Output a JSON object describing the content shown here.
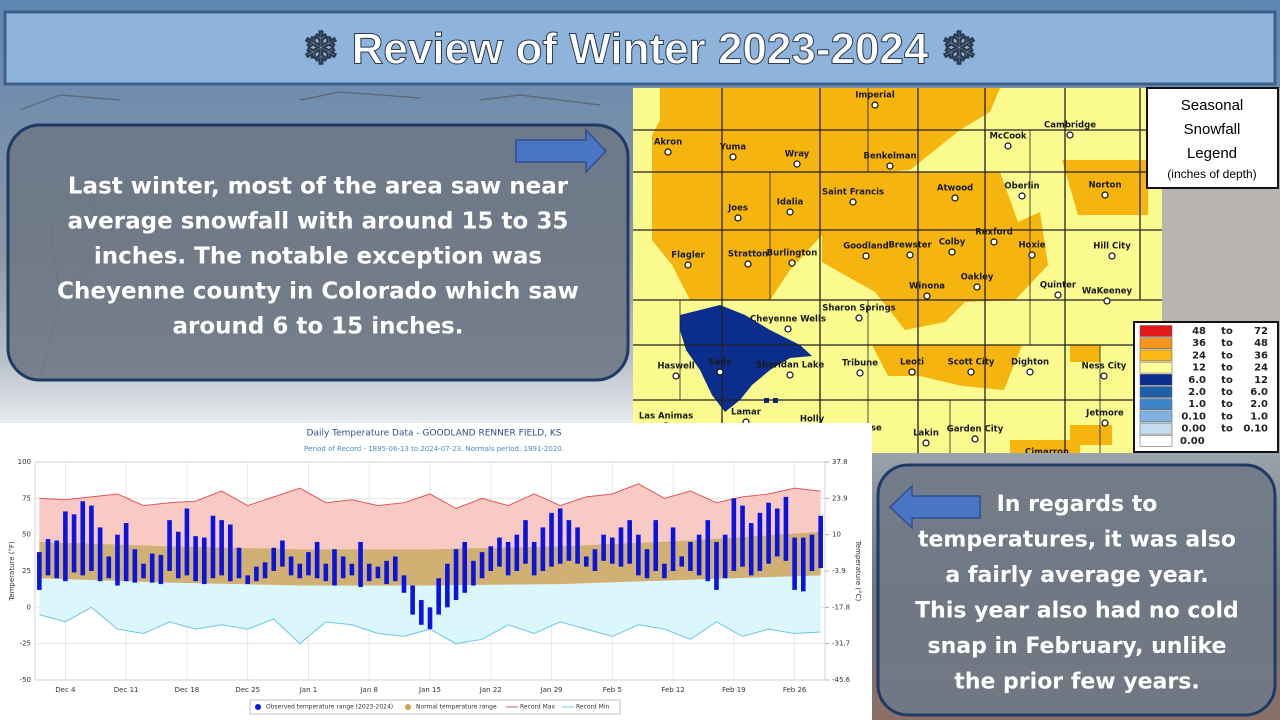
{
  "title": "❄ Review of Winter 2023-2024 ❄",
  "left_text": [
    "Last winter, most of the area saw near",
    "average snowfall with around 15 to 35",
    "inches. The notable exception was",
    "Cheyenne county in Colorado which saw",
    "around 6 to 15 inches."
  ],
  "right_text": [
    "In regards to",
    "temperatures, it was also",
    "a fairly average year.",
    "This year also had no cold",
    "snap in February, unlike",
    "the prior few years."
  ],
  "map": {
    "legend_title": [
      "Seasonal",
      "Snowfall",
      "Legend"
    ],
    "legend_units": "(inches of depth)",
    "legend_connector": "to",
    "legend_rows": [
      {
        "color": "#e31a1c",
        "from": "48",
        "to": "72"
      },
      {
        "color": "#f7941d",
        "from": "36",
        "to": "48"
      },
      {
        "color": "#fbb917",
        "from": "24",
        "to": "36"
      },
      {
        "color": "#ffff99",
        "from": "12",
        "to": "24"
      },
      {
        "color": "#0b2d8c",
        "from": "6.0",
        "to": "12"
      },
      {
        "color": "#1f5ea8",
        "from": "2.0",
        "to": "6.0"
      },
      {
        "color": "#3d85c6",
        "from": "1.0",
        "to": "2.0"
      },
      {
        "color": "#7fb2e0",
        "from": "0.10",
        "to": "1.0"
      },
      {
        "color": "#c6dcf0",
        "from": "0.00",
        "to": "0.10"
      },
      {
        "color": "#ffffff",
        "from": "0.00"
      }
    ],
    "towns": [
      "Imperial",
      "Akron",
      "Yuma",
      "Wray",
      "McCook",
      "Cambridge",
      "Benkelman",
      "Saint Francis",
      "Atwood",
      "Oberlin",
      "Norton",
      "Joes",
      "Idalia",
      "Flagler",
      "Stratton",
      "Burlington",
      "Goodland",
      "Brewster",
      "Colby",
      "Rexford",
      "Hoxie",
      "Hill City",
      "Oakley",
      "Quinter",
      "WaKeeney",
      "Winona",
      "Sharon Springs",
      "Cheyenne Wells",
      "Haswell",
      "Eads",
      "Sheridan Lake",
      "Tribune",
      "Leoti",
      "Scott City",
      "Dighton",
      "Ness City",
      "Las Animas",
      "Lamar",
      "Holly",
      "Syracuse",
      "Lakin",
      "Garden City",
      "Jetmore",
      "Cimarron"
    ]
  },
  "chart_data": {
    "type": "temperature_range",
    "title": "Daily Temperature Data - GOODLAND RENNER FIELD, KS",
    "subtitle": "Period of Record - 1895-06-13 to 2024-07-23. Normals period: 1991-2020.",
    "y_label": "Temperature (°F)",
    "y2_label": "Temperature (°C)",
    "xlim": [
      -0.5,
      90.5
    ],
    "xticks": [
      {
        "value": 3,
        "label": "Dec 4"
      },
      {
        "value": 10,
        "label": "Dec 11"
      },
      {
        "value": 17,
        "label": "Dec 18"
      },
      {
        "value": 24,
        "label": "Dec 25"
      },
      {
        "value": 31,
        "label": "Jan 1"
      },
      {
        "value": 38,
        "label": "Jan 8"
      },
      {
        "value": 45,
        "label": "Jan 15"
      },
      {
        "value": 52,
        "label": "Jan 22"
      },
      {
        "value": 59,
        "label": "Jan 29"
      },
      {
        "value": 66,
        "label": "Feb 5"
      },
      {
        "value": 73,
        "label": "Feb 12"
      },
      {
        "value": 80,
        "label": "Feb 19"
      },
      {
        "value": 87,
        "label": "Feb 26"
      }
    ],
    "ylim": [
      -50,
      100
    ],
    "yticks": [
      -50,
      -25,
      0,
      25,
      50,
      75,
      100
    ],
    "y2lim": [
      -45.6,
      37.8
    ],
    "y2ticks": [
      -45.6,
      -31.7,
      -17.8,
      -3.9,
      10,
      23.9,
      37.8
    ],
    "grid": true,
    "series": [
      {
        "name": "Observed temperature range (2023-2024)",
        "color": "#0a14e0",
        "x": [
          0,
          1,
          2,
          3,
          4,
          5,
          6,
          7,
          8,
          9,
          10,
          11,
          12,
          13,
          14,
          15,
          16,
          17,
          18,
          19,
          20,
          21,
          22,
          23,
          24,
          25,
          26,
          27,
          28,
          29,
          30,
          31,
          32,
          33,
          34,
          35,
          36,
          37,
          38,
          39,
          40,
          41,
          42,
          43,
          44,
          45,
          46,
          47,
          48,
          49,
          50,
          51,
          52,
          53,
          54,
          55,
          56,
          57,
          58,
          59,
          60,
          61,
          62,
          63,
          64,
          65,
          66,
          67,
          68,
          69,
          70,
          71,
          72,
          73,
          74,
          75,
          76,
          77,
          78,
          79,
          80,
          81,
          82,
          83,
          84,
          85,
          86,
          87,
          88,
          89,
          90
        ],
        "low": [
          12,
          22,
          20,
          18,
          24,
          22,
          25,
          18,
          20,
          15,
          18,
          17,
          20,
          17,
          16,
          25,
          20,
          22,
          18,
          16,
          20,
          22,
          18,
          20,
          16,
          18,
          20,
          25,
          28,
          22,
          20,
          22,
          20,
          18,
          15,
          20,
          22,
          14,
          18,
          20,
          16,
          18,
          10,
          -5,
          -12,
          -15,
          -5,
          0,
          5,
          10,
          15,
          20,
          25,
          28,
          22,
          25,
          30,
          22,
          25,
          28,
          30,
          32,
          30,
          28,
          25,
          32,
          30,
          28,
          30,
          22,
          20,
          25,
          20,
          25,
          28,
          25,
          22,
          18,
          12,
          20,
          25,
          28,
          22,
          25,
          30,
          35,
          32,
          12,
          11,
          25,
          27
        ],
        "high": [
          38,
          47,
          46,
          66,
          64,
          73,
          70,
          55,
          35,
          50,
          58,
          40,
          30,
          37,
          36,
          60,
          52,
          68,
          49,
          48,
          63,
          60,
          57,
          41,
          22,
          28,
          31,
          41,
          46,
          35,
          30,
          38,
          45,
          30,
          40,
          35,
          30,
          45,
          30,
          28,
          32,
          35,
          22,
          15,
          5,
          0,
          20,
          30,
          40,
          45,
          32,
          38,
          42,
          48,
          45,
          50,
          60,
          45,
          55,
          65,
          68,
          60,
          55,
          35,
          40,
          50,
          48,
          55,
          60,
          50,
          40,
          60,
          30,
          55,
          35,
          45,
          50,
          60,
          45,
          50,
          75,
          70,
          58,
          65,
          72,
          68,
          76,
          48,
          48,
          50,
          63
        ]
      },
      {
        "name": "Normal temperature range",
        "color": "#c9a25a",
        "x": [
          0,
          15,
          30,
          45,
          60,
          75,
          90
        ],
        "low": [
          20,
          17,
          15,
          15,
          16,
          19,
          22
        ],
        "high": [
          45,
          42,
          40,
          40,
          42,
          46,
          52
        ]
      },
      {
        "name": "Record Max",
        "color": "#e0585a",
        "x": [
          0,
          3,
          6,
          9,
          12,
          15,
          18,
          21,
          24,
          27,
          30,
          33,
          36,
          39,
          42,
          45,
          48,
          51,
          54,
          57,
          60,
          63,
          66,
          69,
          72,
          75,
          78,
          81,
          84,
          87,
          90
        ],
        "values": [
          75,
          74,
          76,
          78,
          70,
          72,
          73,
          80,
          70,
          76,
          82,
          72,
          74,
          70,
          72,
          78,
          68,
          75,
          70,
          78,
          70,
          76,
          78,
          85,
          75,
          80,
          72,
          76,
          78,
          82,
          80
        ]
      },
      {
        "name": "Record Min",
        "color": "#6cc6e8",
        "x": [
          0,
          3,
          6,
          9,
          12,
          15,
          18,
          21,
          24,
          27,
          30,
          33,
          36,
          39,
          42,
          45,
          48,
          51,
          54,
          57,
          60,
          63,
          66,
          69,
          72,
          75,
          78,
          81,
          84,
          87,
          90
        ],
        "values": [
          -5,
          -10,
          0,
          -15,
          -18,
          -10,
          -15,
          -12,
          -15,
          -8,
          -25,
          -10,
          -12,
          -18,
          -20,
          -15,
          -25,
          -22,
          -12,
          -18,
          -10,
          -15,
          -20,
          -12,
          -15,
          -22,
          -10,
          -20,
          -15,
          -18,
          -17
        ]
      }
    ]
  }
}
